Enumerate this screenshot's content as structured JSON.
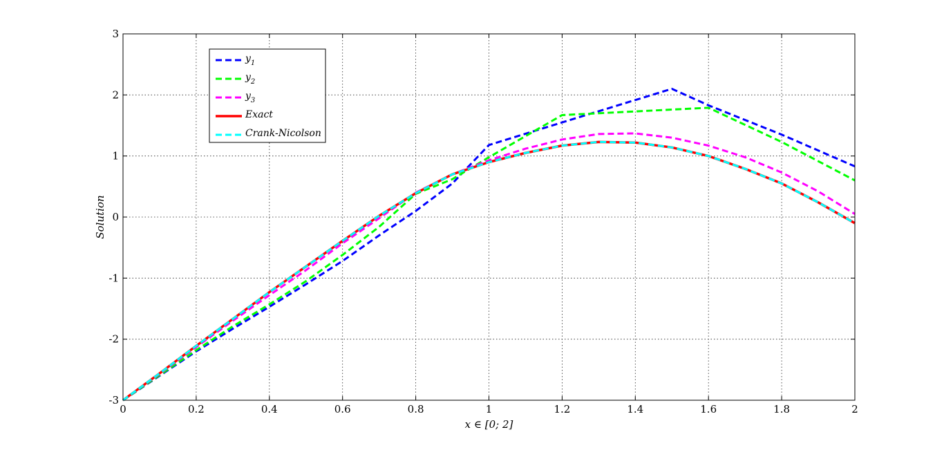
{
  "chart_data": {
    "type": "line",
    "xlabel": "x ∈ [0; 2]",
    "ylabel": "Solution",
    "xlim": [
      0,
      2
    ],
    "ylim": [
      -3,
      3
    ],
    "xticks": [
      0,
      0.2,
      0.4,
      0.6,
      0.8,
      1,
      1.2,
      1.4,
      1.6,
      1.8,
      2
    ],
    "xtick_labels": [
      "0",
      "0.2",
      "0.4",
      "0.6",
      "0.8",
      "1",
      "1.2",
      "1.4",
      "1.6",
      "1.8",
      "2"
    ],
    "yticks": [
      -3,
      -2,
      -1,
      0,
      1,
      2,
      3
    ],
    "ytick_labels": [
      "-3",
      "-2",
      "-1",
      "0",
      "1",
      "2",
      "3"
    ],
    "grid": true,
    "legend_position": "top-left",
    "series": [
      {
        "name": "y",
        "sub": "1",
        "color": "#0000ff",
        "style": "dashed",
        "x": [
          0,
          0.1,
          0.2,
          0.3,
          0.4,
          0.5,
          0.6,
          0.7,
          0.8,
          0.9,
          1.0,
          1.2,
          1.5,
          1.6,
          1.8,
          2.0
        ],
        "y": [
          -3.0,
          -2.6,
          -2.2,
          -1.83,
          -1.47,
          -1.1,
          -0.72,
          -0.3,
          0.1,
          0.55,
          1.18,
          1.55,
          2.1,
          1.83,
          1.35,
          0.83
        ]
      },
      {
        "name": "y",
        "sub": "2",
        "color": "#00ff00",
        "style": "dashed",
        "x": [
          0,
          0.1,
          0.2,
          0.3,
          0.4,
          0.5,
          0.6,
          0.7,
          0.8,
          0.9,
          1.0,
          1.2,
          1.4,
          1.6,
          1.8,
          2.0
        ],
        "y": [
          -3.0,
          -2.59,
          -2.18,
          -1.79,
          -1.43,
          -1.05,
          -0.62,
          -0.16,
          0.38,
          0.62,
          0.98,
          1.67,
          1.73,
          1.79,
          1.23,
          0.6
        ]
      },
      {
        "name": "y",
        "sub": "3",
        "color": "#ff00ff",
        "style": "dashed",
        "x": [
          0,
          0.1,
          0.2,
          0.3,
          0.4,
          0.5,
          0.6,
          0.7,
          0.8,
          0.9,
          1.0,
          1.1,
          1.2,
          1.3,
          1.4,
          1.5,
          1.6,
          1.7,
          1.8,
          1.9,
          2.0
        ],
        "y": [
          -3.0,
          -2.57,
          -2.13,
          -1.7,
          -1.28,
          -0.87,
          -0.43,
          -0.02,
          0.4,
          0.7,
          0.93,
          1.12,
          1.27,
          1.36,
          1.37,
          1.3,
          1.17,
          0.98,
          0.73,
          0.42,
          0.05
        ]
      },
      {
        "name": "Exact",
        "color": "#ff0000",
        "style": "solid",
        "x": [
          0,
          0.1,
          0.2,
          0.3,
          0.4,
          0.5,
          0.6,
          0.7,
          0.8,
          0.9,
          1.0,
          1.1,
          1.2,
          1.3,
          1.4,
          1.5,
          1.6,
          1.7,
          1.8,
          1.9,
          2.0
        ],
        "y": [
          -3.0,
          -2.56,
          -2.11,
          -1.67,
          -1.23,
          -0.81,
          -0.39,
          0.02,
          0.39,
          0.7,
          0.9,
          1.05,
          1.17,
          1.23,
          1.22,
          1.14,
          1.0,
          0.79,
          0.55,
          0.24,
          -0.1
        ]
      },
      {
        "name": "Crank-Nicolson",
        "color": "#00ffff",
        "style": "dashed",
        "x": [
          0,
          0.1,
          0.2,
          0.3,
          0.4,
          0.5,
          0.6,
          0.7,
          0.8,
          0.9,
          1.0,
          1.1,
          1.2,
          1.3,
          1.4,
          1.5,
          1.6,
          1.7,
          1.8,
          1.9,
          2.0
        ],
        "y": [
          -3.0,
          -2.56,
          -2.11,
          -1.67,
          -1.23,
          -0.81,
          -0.39,
          0.02,
          0.39,
          0.7,
          0.9,
          1.05,
          1.17,
          1.23,
          1.22,
          1.14,
          1.0,
          0.79,
          0.55,
          0.24,
          -0.1
        ]
      }
    ]
  }
}
